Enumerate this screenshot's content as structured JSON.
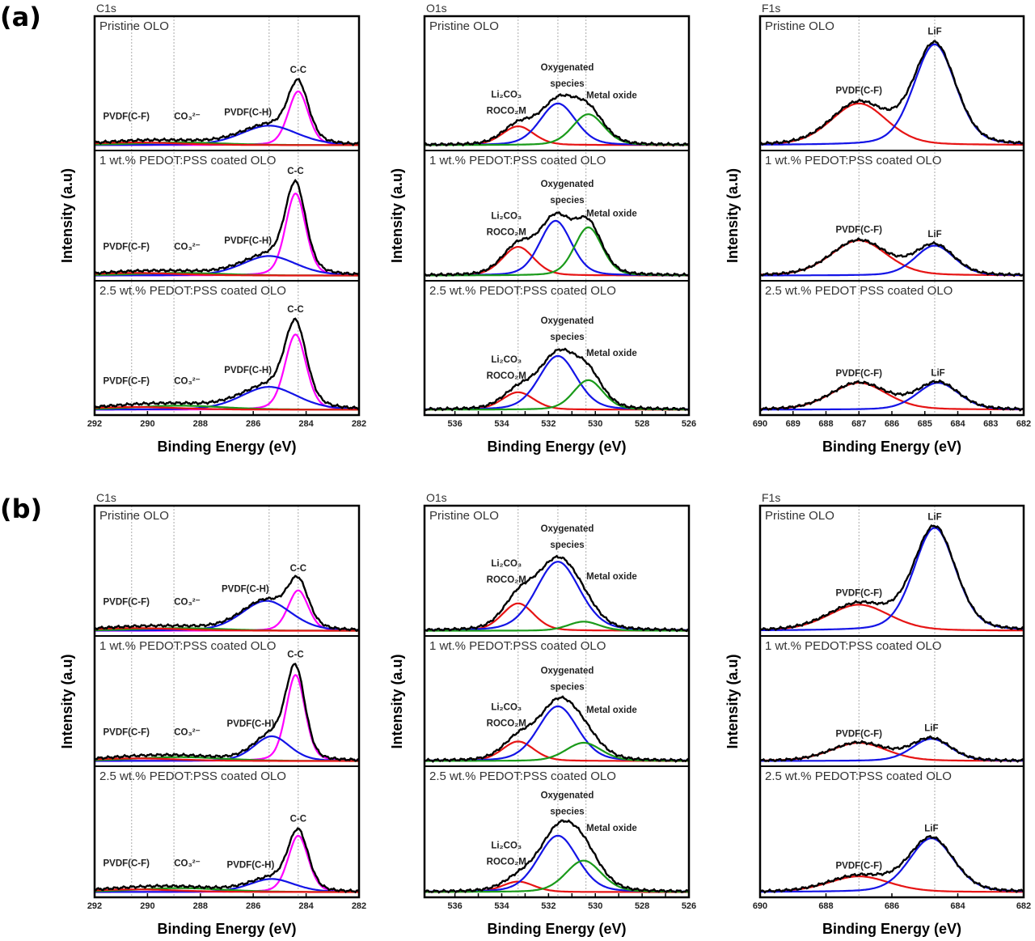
{
  "figure_labels": [
    "(a)",
    "(b)"
  ],
  "colors": {
    "envelope": "#000000",
    "magenta": "#ff00ff",
    "blue": "#1414e6",
    "green": "#1a9a1a",
    "red": "#e61414",
    "reference_line": "#aaaaaa"
  },
  "chart_data": [
    {
      "type": "line",
      "group": "(a)",
      "title": "C1s",
      "xlabel": "Binding Energy (eV)",
      "ylabel": "Intensity (a.u)",
      "xlim": [
        292,
        282
      ],
      "xticks": [
        292,
        290,
        288,
        286,
        284,
        282
      ],
      "reference_lines": [
        290.6,
        289.0,
        285.4,
        284.3
      ],
      "panels": [
        {
          "sample": "Pristine OLO",
          "components": [
            {
              "name": "C-C",
              "color": "#ff00ff",
              "center": 284.3,
              "fwhm": 0.9,
              "height": 0.4
            },
            {
              "name": "PVDF(C-H)",
              "color": "#1414e6",
              "center": 285.4,
              "fwhm": 2.5,
              "height": 0.145
            },
            {
              "name": "CO₃²⁻",
              "color": "#1a9a1a",
              "center": 288.8,
              "fwhm": 4,
              "height": 0.02
            },
            {
              "name": "PVDF(C-F)",
              "color": "#e61414",
              "center": 290.5,
              "fwhm": 4,
              "height": 0.02
            }
          ]
        },
        {
          "sample": "1 wt.% PEDOT:PSS coated OLO",
          "components": [
            {
              "name": "C-C",
              "color": "#ff00ff",
              "center": 284.4,
              "fwhm": 0.9,
              "height": 0.63
            },
            {
              "name": "PVDF(C-H)",
              "color": "#1414e6",
              "center": 285.4,
              "fwhm": 2.4,
              "height": 0.15
            },
            {
              "name": "CO₃²⁻",
              "color": "#1a9a1a",
              "center": 288.8,
              "fwhm": 4,
              "height": 0.02
            },
            {
              "name": "PVDF(C-F)",
              "color": "#e61414",
              "center": 290.5,
              "fwhm": 4,
              "height": 0.02
            }
          ]
        },
        {
          "sample": "2.5 wt.% PEDOT:PSS coated OLO",
          "components": [
            {
              "name": "C-C",
              "color": "#ff00ff",
              "center": 284.4,
              "fwhm": 0.95,
              "height": 0.56
            },
            {
              "name": "PVDF(C-H)",
              "color": "#1414e6",
              "center": 285.4,
              "fwhm": 2.5,
              "height": 0.17
            },
            {
              "name": "CO₃²⁻",
              "color": "#1a9a1a",
              "center": 288.8,
              "fwhm": 4,
              "height": 0.03
            },
            {
              "name": "PVDF(C-F)",
              "color": "#e61414",
              "center": 290.5,
              "fwhm": 4,
              "height": 0.02
            }
          ]
        }
      ]
    },
    {
      "type": "line",
      "group": "(a)",
      "title": "O1s",
      "xlabel": "Binding Energy (eV)",
      "ylabel": "Intensity (a.u)",
      "xlim": [
        537.3,
        526
      ],
      "xticks": [
        536,
        535,
        534,
        533,
        532,
        531,
        530,
        529,
        528,
        527,
        526
      ],
      "xtick_labels": [
        536,
        534,
        532,
        530,
        528,
        526
      ],
      "reference_lines": [
        533.3,
        531.6,
        530.4
      ],
      "panels": [
        {
          "sample": "Pristine OLO",
          "components": [
            {
              "name": "Li₂CO₃|ROCO₂M",
              "color": "#e61414",
              "center": 533.3,
              "fwhm": 1.6,
              "height": 0.14
            },
            {
              "name": "Oxygenated|species",
              "color": "#1414e6",
              "center": 531.6,
              "fwhm": 1.8,
              "height": 0.31
            },
            {
              "name": "Metal oxide",
              "color": "#1a9a1a",
              "center": 530.3,
              "fwhm": 1.6,
              "height": 0.23
            }
          ]
        },
        {
          "sample": "1 wt.% PEDOT:PSS coated OLO",
          "components": [
            {
              "name": "Li₂CO₃|ROCO₂M",
              "color": "#e61414",
              "center": 533.3,
              "fwhm": 1.6,
              "height": 0.22
            },
            {
              "name": "Oxygenated|species",
              "color": "#1414e6",
              "center": 531.7,
              "fwhm": 1.6,
              "height": 0.42
            },
            {
              "name": "Metal oxide",
              "color": "#1a9a1a",
              "center": 530.3,
              "fwhm": 1.4,
              "height": 0.37
            }
          ]
        },
        {
          "sample": "2.5 wt.% PEDOT:PSS coated OLO",
          "components": [
            {
              "name": "Li₂CO₃|ROCO₂M",
              "color": "#e61414",
              "center": 533.3,
              "fwhm": 1.6,
              "height": 0.13
            },
            {
              "name": "Oxygenated|species",
              "color": "#1414e6",
              "center": 531.6,
              "fwhm": 1.9,
              "height": 0.4
            },
            {
              "name": "Metal oxide",
              "color": "#1a9a1a",
              "center": 530.3,
              "fwhm": 1.5,
              "height": 0.22
            }
          ]
        }
      ]
    },
    {
      "type": "line",
      "group": "(a)",
      "title": "F1s",
      "xlabel": "Binding Energy (eV)",
      "ylabel": "Intensity (a.u)",
      "xlim": [
        690,
        682
      ],
      "xticks": [
        690,
        689,
        688,
        687,
        686,
        685,
        684,
        683,
        682
      ],
      "reference_lines": [
        687.0,
        684.7
      ],
      "panels": [
        {
          "sample": "Pristine OLO",
          "components": [
            {
              "name": "PVDF(C-F)",
              "color": "#e61414",
              "center": 687.0,
              "fwhm": 2.0,
              "height": 0.31
            },
            {
              "name": "LiF",
              "color": "#1414e6",
              "center": 684.7,
              "fwhm": 1.5,
              "height": 0.75
            }
          ]
        },
        {
          "sample": "1 wt.% PEDOT:PSS coated OLO",
          "components": [
            {
              "name": "PVDF(C-F)",
              "color": "#e61414",
              "center": 687.0,
              "fwhm": 2.0,
              "height": 0.27
            },
            {
              "name": "LiF",
              "color": "#1414e6",
              "center": 684.7,
              "fwhm": 1.4,
              "height": 0.23
            }
          ]
        },
        {
          "sample": "2.5 wt.% PEDOT PSS coated OLO",
          "components": [
            {
              "name": "PVDF(C-F)",
              "color": "#e61414",
              "center": 687.0,
              "fwhm": 2.0,
              "height": 0.2
            },
            {
              "name": "LiF",
              "color": "#1414e6",
              "center": 684.6,
              "fwhm": 1.5,
              "height": 0.2
            }
          ]
        }
      ]
    },
    {
      "type": "line",
      "group": "(b)",
      "title": "C1s",
      "xlabel": "Binding Energy (eV)",
      "ylabel": "Intensity (a.u)",
      "xlim": [
        292,
        282
      ],
      "xticks": [
        292,
        290,
        288,
        286,
        284,
        282
      ],
      "reference_lines": [
        290.6,
        289.0,
        285.4,
        284.3
      ],
      "panels": [
        {
          "sample": "Pristine OLO",
          "components": [
            {
              "name": "C-C",
              "color": "#ff00ff",
              "center": 284.3,
              "fwhm": 0.9,
              "height": 0.31
            },
            {
              "name": "PVDF(C-H)",
              "color": "#1414e6",
              "center": 285.5,
              "fwhm": 2.2,
              "height": 0.23
            },
            {
              "name": "CO₃²⁻",
              "color": "#1a9a1a",
              "center": 288.8,
              "fwhm": 4,
              "height": 0.02
            },
            {
              "name": "PVDF(C-F)",
              "color": "#e61414",
              "center": 290.5,
              "fwhm": 4,
              "height": 0.02
            }
          ]
        },
        {
          "sample": "1 wt.% PEDOT:PSS coated OLO",
          "components": [
            {
              "name": "C-C",
              "color": "#ff00ff",
              "center": 284.4,
              "fwhm": 0.85,
              "height": 0.66
            },
            {
              "name": "PVDF(C-H)",
              "color": "#1414e6",
              "center": 285.3,
              "fwhm": 1.6,
              "height": 0.19
            },
            {
              "name": "CO₃²⁻",
              "color": "#1a9a1a",
              "center": 288.8,
              "fwhm": 4,
              "height": 0.03
            },
            {
              "name": "PVDF(C-F)",
              "color": "#e61414",
              "center": 290.5,
              "fwhm": 4,
              "height": 0.02
            }
          ]
        },
        {
          "sample": "2.5 wt.% PEDOT:PSS coated OLO",
          "components": [
            {
              "name": "C-C",
              "color": "#ff00ff",
              "center": 284.3,
              "fwhm": 0.9,
              "height": 0.43
            },
            {
              "name": "PVDF(C-H)",
              "color": "#1414e6",
              "center": 285.3,
              "fwhm": 2.0,
              "height": 0.1
            },
            {
              "name": "CO₃²⁻",
              "color": "#1a9a1a",
              "center": 288.8,
              "fwhm": 4,
              "height": 0.03
            },
            {
              "name": "PVDF(C-F)",
              "color": "#e61414",
              "center": 290.5,
              "fwhm": 4,
              "height": 0.02
            }
          ]
        }
      ]
    },
    {
      "type": "line",
      "group": "(b)",
      "title": "O1s",
      "xlabel": "Binding Energy (eV)",
      "ylabel": "Intensity (a.u)",
      "xlim": [
        537.3,
        526
      ],
      "xticks": [
        536,
        535,
        534,
        533,
        532,
        531,
        530,
        529,
        528,
        527,
        526
      ],
      "xtick_labels": [
        536,
        534,
        532,
        530,
        528,
        526
      ],
      "reference_lines": [
        533.3,
        531.6,
        530.4
      ],
      "panels": [
        {
          "sample": "Pristine OLO",
          "components": [
            {
              "name": "Li₂CO₃|ROCO₂M",
              "color": "#e61414",
              "center": 533.3,
              "fwhm": 1.6,
              "height": 0.21
            },
            {
              "name": "Oxygenated|species",
              "color": "#1414e6",
              "center": 531.6,
              "fwhm": 2.2,
              "height": 0.53
            },
            {
              "name": "Metal oxide",
              "color": "#1a9a1a",
              "center": 530.5,
              "fwhm": 1.6,
              "height": 0.07
            }
          ]
        },
        {
          "sample": "1 wt.% PEDOT:PSS coated OLO",
          "components": [
            {
              "name": "Li₂CO₃|ROCO₂M",
              "color": "#e61414",
              "center": 533.3,
              "fwhm": 1.6,
              "height": 0.15
            },
            {
              "name": "Oxygenated|species",
              "color": "#1414e6",
              "center": 531.6,
              "fwhm": 2.0,
              "height": 0.42
            },
            {
              "name": "Metal oxide",
              "color": "#1a9a1a",
              "center": 530.5,
              "fwhm": 1.8,
              "height": 0.14
            }
          ]
        },
        {
          "sample": "2.5 wt.% PEDOT:PSS coated OLO",
          "components": [
            {
              "name": "Li₂CO₃|ROCO₂M",
              "color": "#e61414",
              "center": 533.3,
              "fwhm": 1.6,
              "height": 0.08
            },
            {
              "name": "Oxygenated|species",
              "color": "#1414e6",
              "center": 531.6,
              "fwhm": 2.0,
              "height": 0.43
            },
            {
              "name": "Metal oxide",
              "color": "#1a9a1a",
              "center": 530.5,
              "fwhm": 1.8,
              "height": 0.24
            }
          ]
        }
      ]
    },
    {
      "type": "line",
      "group": "(b)",
      "title": "F1s",
      "xlabel": "Binding Energy (eV)",
      "ylabel": "Intensity (a.u)",
      "xlim": [
        690,
        682
      ],
      "xticks": [
        690,
        688,
        686,
        684,
        682
      ],
      "reference_lines": [
        687.0,
        684.7
      ],
      "panels": [
        {
          "sample": "Pristine OLO",
          "components": [
            {
              "name": "PVDF(C-F)",
              "color": "#e61414",
              "center": 687.0,
              "fwhm": 2.2,
              "height": 0.2
            },
            {
              "name": "LiF",
              "color": "#1414e6",
              "center": 684.7,
              "fwhm": 1.5,
              "height": 0.79
            }
          ]
        },
        {
          "sample": "1 wt.% PEDOT:PSS coated OLO",
          "components": [
            {
              "name": "PVDF(C-F)",
              "color": "#e61414",
              "center": 687.0,
              "fwhm": 2.0,
              "height": 0.14
            },
            {
              "name": "LiF",
              "color": "#1414e6",
              "center": 684.8,
              "fwhm": 1.4,
              "height": 0.17
            }
          ]
        },
        {
          "sample": "2.5 wt.% PEDOT:PSS coated OLO",
          "components": [
            {
              "name": "PVDF(C-F)",
              "color": "#e61414",
              "center": 687.0,
              "fwhm": 2.2,
              "height": 0.12
            },
            {
              "name": "LiF",
              "color": "#1414e6",
              "center": 684.8,
              "fwhm": 1.6,
              "height": 0.41
            }
          ]
        }
      ]
    }
  ]
}
